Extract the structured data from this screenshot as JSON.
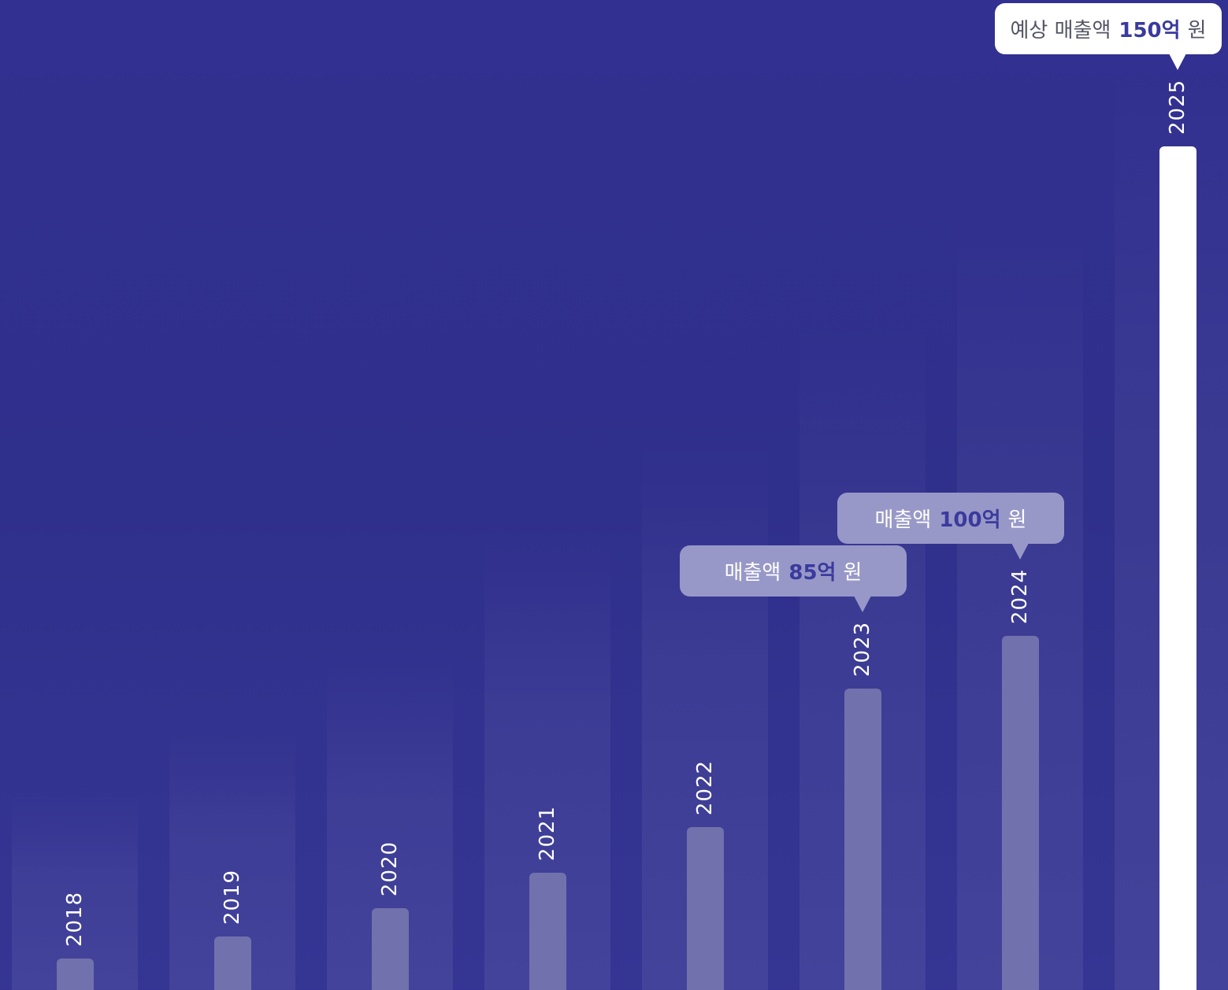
{
  "colors": {
    "background": "#2f2f8c",
    "bar": "#7171ad",
    "highlight_bar": "#ffffff",
    "callout_fill": "#9898c8",
    "callout_highlight_fill": "#ffffff",
    "callout_number": "#3a3a9e",
    "year_text": "#ffffff"
  },
  "chart_data": {
    "type": "bar",
    "categories": [
      "2018",
      "2019",
      "2020",
      "2021",
      "2022",
      "2023",
      "2024",
      "2025"
    ],
    "values": [
      8,
      15,
      23,
      33,
      46,
      85,
      100,
      150
    ],
    "highlight_category": "2025",
    "title": "",
    "xlabel": "",
    "ylabel": "",
    "ylim": [
      0,
      160
    ],
    "grid": false,
    "legend": "none"
  },
  "callouts": [
    {
      "year": "2023",
      "prefix": "매출액",
      "number": "85억",
      "suffix": "원",
      "highlight": false
    },
    {
      "year": "2024",
      "prefix": "매출액",
      "number": "100억",
      "suffix": "원",
      "highlight": false
    },
    {
      "year": "2025",
      "prefix": "예상 매출액",
      "number": "150억",
      "suffix": "원",
      "highlight": true
    }
  ]
}
